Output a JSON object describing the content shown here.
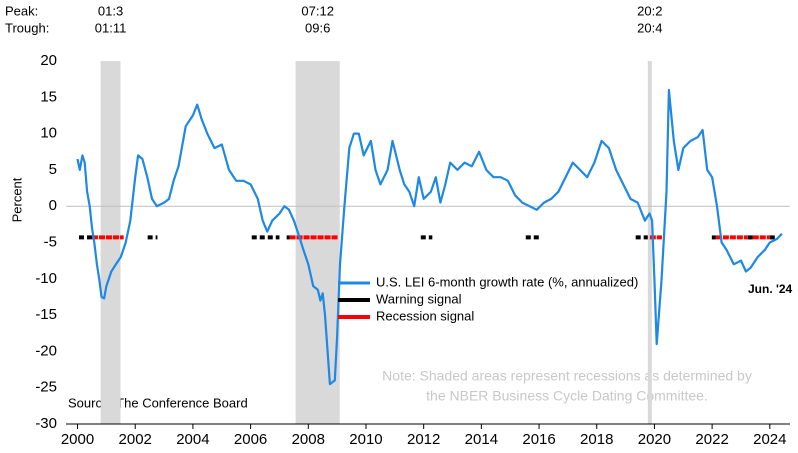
{
  "chart_data": {
    "type": "line",
    "y_label": "Percent",
    "peak_label": "Peak:",
    "trough_label": "Trough:",
    "source": "Source: The Conference Board",
    "note": [
      "Note: Shaded areas represent recessions as determined by",
      "the NBER Business Cycle Dating Committee."
    ],
    "annotation": "Jun. '24",
    "xlim": [
      1999.6,
      2024.7
    ],
    "xticks": [
      2000,
      2002,
      2004,
      2006,
      2008,
      2010,
      2012,
      2014,
      2016,
      2018,
      2020,
      2022,
      2024
    ],
    "ylim": [
      -30,
      20
    ],
    "yticks": [
      20,
      15,
      10,
      5,
      0,
      -5,
      -10,
      -15,
      -20,
      -25,
      -30
    ],
    "zero_line": true,
    "recessions": [
      {
        "peak": "01:3",
        "trough": "01:11",
        "x": [
          2000.8,
          2001.49
        ]
      },
      {
        "peak": "07:12",
        "trough": "09:6",
        "x": [
          2007.56,
          2009.09
        ]
      },
      {
        "peak": "20:2",
        "trough": "20:4",
        "x": [
          2019.77,
          2019.91
        ]
      }
    ],
    "recession_color": "#d9d9d9",
    "x": [
      2000.0,
      2000.08,
      2000.17,
      2000.25,
      2000.33,
      2000.42,
      2000.5,
      2000.58,
      2000.67,
      2000.75,
      2000.83,
      2000.92,
      2001.0,
      2001.17,
      2001.33,
      2001.5,
      2001.67,
      2001.83,
      2002.0,
      2002.1,
      2002.25,
      2002.42,
      2002.58,
      2002.75,
      2003.0,
      2003.17,
      2003.33,
      2003.5,
      2003.75,
      2004.0,
      2004.15,
      2004.3,
      2004.5,
      2004.75,
      2005.0,
      2005.25,
      2005.5,
      2005.75,
      2006.0,
      2006.25,
      2006.42,
      2006.58,
      2006.75,
      2007.0,
      2007.17,
      2007.33,
      2007.5,
      2007.67,
      2007.83,
      2008.0,
      2008.17,
      2008.33,
      2008.42,
      2008.5,
      2008.58,
      2008.67,
      2008.75,
      2008.92,
      2009.0,
      2009.1,
      2009.25,
      2009.42,
      2009.58,
      2009.75,
      2009.92,
      2010.17,
      2010.33,
      2010.5,
      2010.75,
      2010.92,
      2011.17,
      2011.33,
      2011.5,
      2011.67,
      2011.83,
      2012.0,
      2012.25,
      2012.42,
      2012.58,
      2012.75,
      2012.92,
      2013.17,
      2013.42,
      2013.67,
      2013.92,
      2014.17,
      2014.42,
      2014.67,
      2014.92,
      2015.17,
      2015.42,
      2015.67,
      2015.92,
      2016.17,
      2016.42,
      2016.67,
      2016.92,
      2017.17,
      2017.42,
      2017.67,
      2017.92,
      2018.17,
      2018.42,
      2018.67,
      2018.92,
      2019.17,
      2019.42,
      2019.67,
      2019.83,
      2019.92,
      2020.0,
      2020.08,
      2020.25,
      2020.42,
      2020.5,
      2020.67,
      2020.83,
      2021.0,
      2021.25,
      2021.5,
      2021.67,
      2021.83,
      2022.0,
      2022.17,
      2022.33,
      2022.5,
      2022.75,
      2023.0,
      2023.17,
      2023.33,
      2023.58,
      2023.83,
      2024.0,
      2024.25,
      2024.42
    ],
    "series": [
      {
        "name": "U.S. LEI 6-month growth rate (%, annualized)",
        "color": "#1e88e5",
        "values": [
          6.5,
          5,
          7,
          6,
          2,
          0,
          -3,
          -5,
          -8,
          -10,
          -12.5,
          -12.7,
          -11,
          -9,
          -8,
          -7,
          -5,
          -2,
          4,
          7,
          6.5,
          4,
          1,
          0,
          0.5,
          1,
          3.5,
          5.5,
          11,
          12.5,
          14,
          12,
          10,
          8,
          8.5,
          5,
          3.5,
          3.5,
          3,
          1,
          -2,
          -3.5,
          -2,
          -1,
          0,
          -0.5,
          -2,
          -4,
          -6,
          -8,
          -11,
          -11.5,
          -13,
          -12,
          -15,
          -20,
          -24.5,
          -24,
          -18,
          -8,
          0,
          8,
          10,
          10,
          7,
          9,
          5,
          3,
          5,
          9,
          5,
          3,
          2,
          0,
          4,
          1,
          2,
          4,
          0.5,
          3,
          6,
          5,
          6,
          5.5,
          7.5,
          5,
          4,
          4,
          3.5,
          1.5,
          0.5,
          0,
          -0.5,
          0.5,
          1,
          2,
          4,
          6,
          5,
          4,
          6,
          9,
          8,
          5,
          3,
          1,
          0.5,
          -2,
          -1,
          -2,
          -10,
          -19,
          -10,
          2,
          16,
          9,
          5,
          8,
          9,
          9.5,
          10.5,
          5,
          4,
          0,
          -5,
          -6,
          -8,
          -7.5,
          -9,
          -8.5,
          -7,
          -6,
          -5,
          -4.5,
          -3.8
        ]
      }
    ],
    "signals": [
      {
        "name": "Warning signal",
        "color": "#000000",
        "level": -4.3,
        "ranges": [
          [
            2000.05,
            2000.5
          ],
          [
            2002.43,
            2002.77
          ],
          [
            2006.04,
            2007.0
          ],
          [
            2007.25,
            2007.35
          ],
          [
            2011.9,
            2012.3
          ],
          [
            2015.54,
            2016.06
          ],
          [
            2019.35,
            2019.77
          ],
          [
            2021.99,
            2022.13
          ],
          [
            2023.24,
            2023.41
          ],
          [
            2024.0,
            2024.2
          ]
        ]
      },
      {
        "name": "Recession signal",
        "color": "#ff0000",
        "level": -4.3,
        "ranges": [
          [
            2000.5,
            2001.6
          ],
          [
            2007.35,
            2009.02
          ],
          [
            2019.84,
            2020.26
          ],
          [
            2022.13,
            2023.24
          ],
          [
            2023.41,
            2024.0
          ]
        ]
      }
    ]
  }
}
